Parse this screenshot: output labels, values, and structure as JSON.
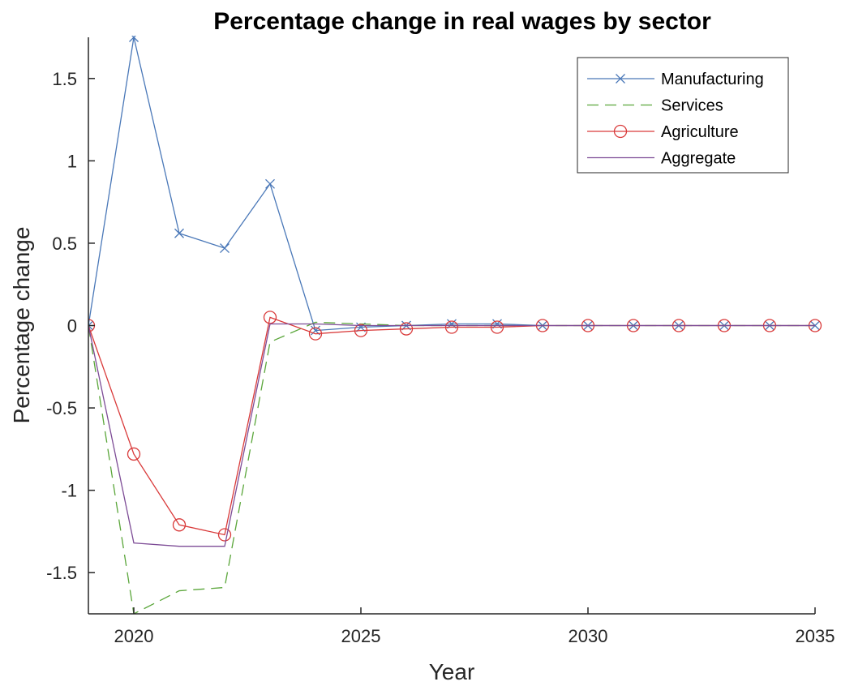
{
  "chart_data": {
    "type": "line",
    "title": "Percentage change in real wages by sector",
    "xlabel": "Year",
    "ylabel": "Percentage change",
    "xlim": [
      2019,
      2035
    ],
    "ylim": [
      -1.75,
      1.75
    ],
    "xticks": [
      2020,
      2025,
      2030,
      2035
    ],
    "yticks": [
      -1.5,
      -1,
      -0.5,
      0,
      0.5,
      1,
      1.5
    ],
    "ytick_labels": [
      "-1.5",
      "-1",
      "-0.5",
      "0",
      "0.5",
      "1",
      "1.5"
    ],
    "grid": false,
    "legend_position": "top-right",
    "x": [
      2019,
      2020,
      2021,
      2022,
      2023,
      2024,
      2025,
      2026,
      2027,
      2028,
      2029,
      2030,
      2031,
      2032,
      2033,
      2034,
      2035
    ],
    "series": [
      {
        "name": "Manufacturing",
        "color": "#4a78b8",
        "style": "solid",
        "marker": "x",
        "values": [
          0,
          1.75,
          0.56,
          0.47,
          0.86,
          -0.03,
          -0.01,
          0.0,
          0.01,
          0.01,
          0.0,
          0.0,
          0.0,
          0.0,
          0.0,
          0.0,
          0.0
        ]
      },
      {
        "name": "Services",
        "color": "#5aa63a",
        "style": "dashed",
        "marker": "none",
        "values": [
          0,
          -1.75,
          -1.61,
          -1.59,
          -0.1,
          0.02,
          0.01,
          0.0,
          0.0,
          0.0,
          0.0,
          0.0,
          0.0,
          0.0,
          0.0,
          0.0,
          0.0
        ]
      },
      {
        "name": "Agriculture",
        "color": "#d93a3a",
        "style": "solid",
        "marker": "o",
        "values": [
          0,
          -0.78,
          -1.21,
          -1.27,
          0.05,
          -0.05,
          -0.03,
          -0.02,
          -0.01,
          -0.01,
          0.0,
          0.0,
          0.0,
          0.0,
          0.0,
          0.0,
          0.0
        ]
      },
      {
        "name": "Aggregate",
        "color": "#7d4c96",
        "style": "solid",
        "marker": "none",
        "values": [
          0,
          -1.32,
          -1.34,
          -1.34,
          0.01,
          0.01,
          0.0,
          0.0,
          0.0,
          0.0,
          0.0,
          0.0,
          0.0,
          0.0,
          0.0,
          0.0,
          0.0
        ]
      }
    ]
  }
}
